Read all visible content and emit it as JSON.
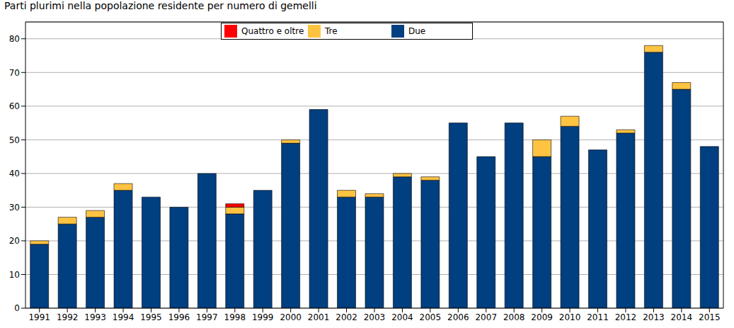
{
  "chart_data": {
    "type": "bar",
    "title": "Parti plurimi nella popolazione residente per numero di gemelli",
    "categories": [
      "1991",
      "1992",
      "1993",
      "1994",
      "1995",
      "1996",
      "1997",
      "1998",
      "1999",
      "2000",
      "2001",
      "2002",
      "2003",
      "2004",
      "2005",
      "2006",
      "2007",
      "2008",
      "2009",
      "2010",
      "2011",
      "2012",
      "2013",
      "2014",
      "2015"
    ],
    "series": [
      {
        "name": "Quattro e oltre",
        "color": "#ff0000",
        "values": [
          0,
          0,
          0,
          0,
          0,
          0,
          0,
          1,
          0,
          0,
          0,
          0,
          0,
          0,
          0,
          0,
          0,
          0,
          0,
          0,
          0,
          0,
          0,
          0,
          0
        ]
      },
      {
        "name": "Tre",
        "color": "#ffc342",
        "values": [
          1,
          2,
          2,
          2,
          0,
          0,
          0,
          2,
          0,
          1,
          0,
          2,
          1,
          1,
          1,
          0,
          0,
          0,
          5,
          3,
          0,
          1,
          2,
          2,
          0
        ]
      },
      {
        "name": "Due",
        "color": "#003f80",
        "values": [
          19,
          25,
          27,
          35,
          33,
          30,
          40,
          28,
          35,
          49,
          59,
          33,
          33,
          39,
          38,
          55,
          45,
          55,
          45,
          54,
          47,
          52,
          76,
          65,
          48
        ]
      }
    ],
    "ylim": [
      0,
      85
    ],
    "yticks": [
      0,
      10,
      20,
      30,
      40,
      50,
      60,
      70,
      80
    ],
    "grid": true,
    "stacked": true,
    "legend": "top"
  }
}
